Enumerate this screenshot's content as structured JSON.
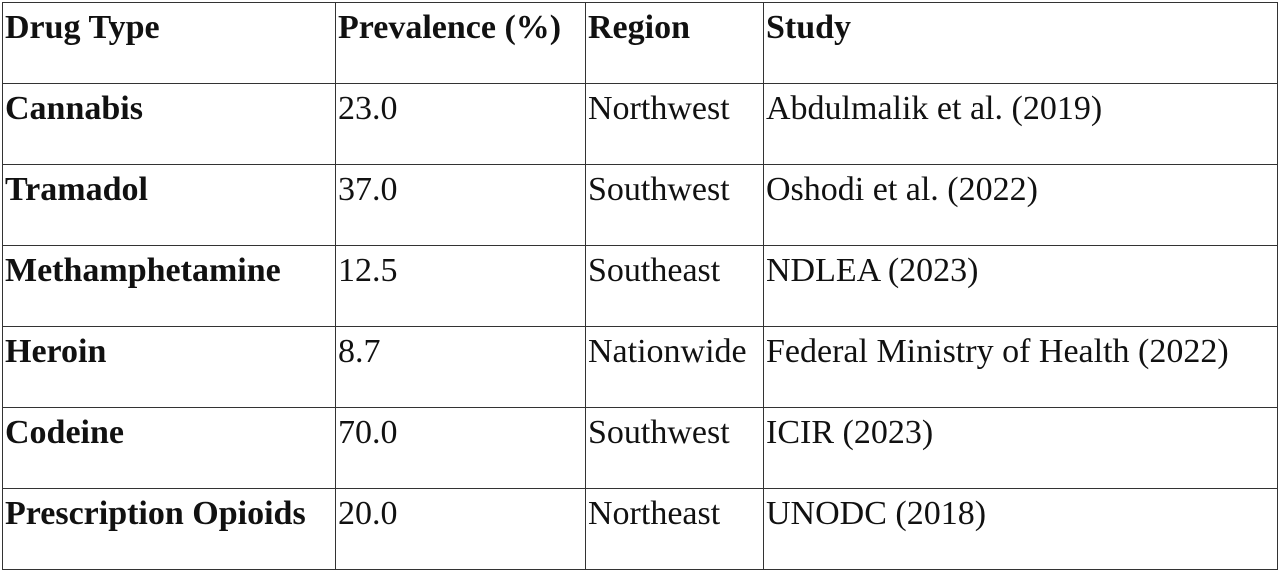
{
  "table": {
    "header": [
      "Drug Type",
      "Prevalence (%)",
      "Region",
      "Study"
    ],
    "rows": [
      [
        "Cannabis",
        "23.0",
        "Northwest",
        "Abdulmalik et al. (2019)"
      ],
      [
        "Tramadol",
        "37.0",
        "Southwest",
        "Oshodi et al. (2022)"
      ],
      [
        "Methamphetamine",
        "12.5",
        "Southeast",
        "NDLEA (2023)"
      ],
      [
        "Heroin",
        "8.7",
        "Nationwide",
        "Federal Ministry of Health (2022)"
      ],
      [
        "Codeine",
        "70.0",
        "Southwest",
        "ICIR (2023)"
      ],
      [
        "Prescription Opioids",
        "20.0",
        "Northeast",
        "UNODC (2018)"
      ]
    ]
  }
}
